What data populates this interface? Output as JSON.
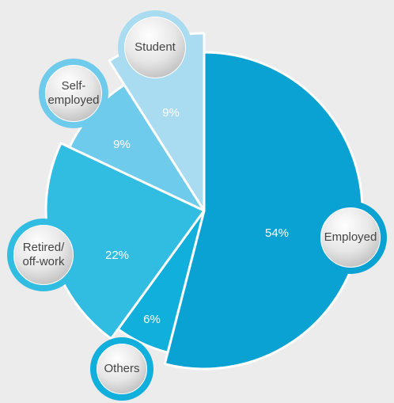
{
  "chart_data": {
    "type": "pie",
    "categories": [
      "Employed",
      "Others",
      "Retired/\noff-work",
      "Self-\nemployed",
      "Student"
    ],
    "values": [
      54,
      6,
      22,
      9,
      9
    ],
    "value_labels": [
      "54%",
      "6%",
      "22%",
      "9%",
      "9%"
    ],
    "colors": [
      "#0aa2d3",
      "#10afdc",
      "#31bce2",
      "#6fcbec",
      "#a9dcf1"
    ]
  }
}
